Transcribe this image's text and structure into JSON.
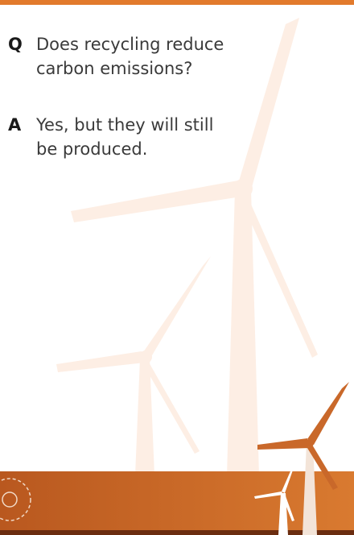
{
  "qa": [
    {
      "marker": "Q",
      "text": "Does recycling reduce carbon emissions?"
    },
    {
      "marker": "A",
      "text": "Yes, but they will still be produced."
    }
  ]
}
